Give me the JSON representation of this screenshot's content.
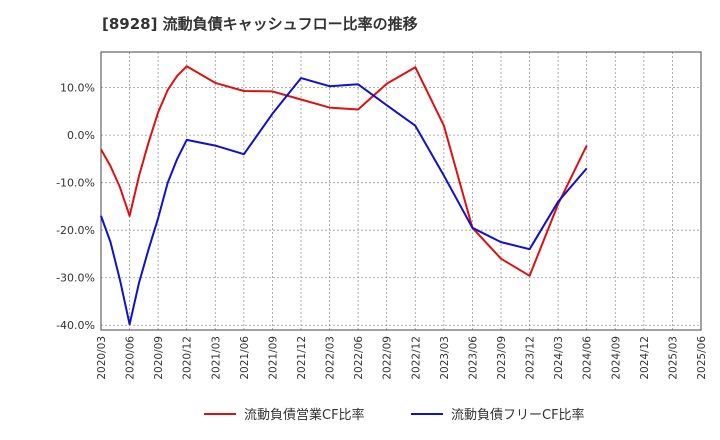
{
  "chart_data": {
    "type": "line",
    "title": "[8928]  流動負債キャッシュフロー比率の推移",
    "xlabel": "",
    "ylabel": "",
    "ylim": [
      -41,
      17.5
    ],
    "yticks": [
      10,
      0,
      -10,
      -20,
      -30,
      -40
    ],
    "ytick_labels": [
      "10.0%",
      "0.0%",
      "-10.0%",
      "-20.0%",
      "-30.0%",
      "-40.0%"
    ],
    "x_start": "2020/03",
    "x_end": "2025/06",
    "x_tick_labels": [
      "2020/03",
      "2020/06",
      "2020/09",
      "2020/12",
      "2021/03",
      "2021/06",
      "2021/09",
      "2021/12",
      "2022/03",
      "2022/06",
      "2022/09",
      "2022/12",
      "2023/03",
      "2023/06",
      "2023/09",
      "2023/12",
      "2024/03",
      "2024/06",
      "2024/09",
      "2024/12",
      "2025/03",
      "2025/06"
    ],
    "grid": true,
    "legend_position": "bottom",
    "series": [
      {
        "name": "流動負債営業CF比率",
        "color": "#dd1111",
        "points": [
          [
            "2020/03",
            -3.0
          ],
          [
            "2020/04",
            -6.5
          ],
          [
            "2020/05",
            -11.0
          ],
          [
            "2020/06",
            -17.0
          ],
          [
            "2020/07",
            -8.5
          ],
          [
            "2020/08",
            -1.5
          ],
          [
            "2020/09",
            4.8
          ],
          [
            "2020/10",
            9.5
          ],
          [
            "2020/11",
            12.5
          ],
          [
            "2020/12",
            14.5
          ],
          [
            "2021/03",
            11.0
          ],
          [
            "2021/06",
            9.3
          ],
          [
            "2021/09",
            9.2
          ],
          [
            "2021/12",
            7.5
          ],
          [
            "2022/03",
            5.8
          ],
          [
            "2022/06",
            5.4
          ],
          [
            "2022/09",
            10.8
          ],
          [
            "2022/12",
            14.3
          ],
          [
            "2023/03",
            2.0
          ],
          [
            "2023/06",
            -19.5
          ],
          [
            "2023/09",
            -26.0
          ],
          [
            "2023/12",
            -29.6
          ],
          [
            "2024/03",
            -14.5
          ],
          [
            "2024/06",
            -2.2
          ]
        ]
      },
      {
        "name": "流動負債フリーCF比率",
        "color": "#1111cc",
        "points": [
          [
            "2020/03",
            -17.0
          ],
          [
            "2020/04",
            -22.5
          ],
          [
            "2020/05",
            -30.5
          ],
          [
            "2020/06",
            -39.8
          ],
          [
            "2020/07",
            -31.0
          ],
          [
            "2020/08",
            -24.0
          ],
          [
            "2020/09",
            -17.5
          ],
          [
            "2020/10",
            -10.0
          ],
          [
            "2020/11",
            -5.0
          ],
          [
            "2020/12",
            -1.0
          ],
          [
            "2021/03",
            -2.2
          ],
          [
            "2021/06",
            -4.0
          ],
          [
            "2021/09",
            4.5
          ],
          [
            "2021/12",
            12.0
          ],
          [
            "2022/03",
            10.3
          ],
          [
            "2022/06",
            10.7
          ],
          [
            "2022/09",
            6.3
          ],
          [
            "2022/12",
            2.0
          ],
          [
            "2023/03",
            -8.5
          ],
          [
            "2023/06",
            -19.5
          ],
          [
            "2023/09",
            -22.5
          ],
          [
            "2023/12",
            -24.0
          ],
          [
            "2024/03",
            -14.0
          ],
          [
            "2024/06",
            -7.0
          ]
        ]
      }
    ]
  }
}
